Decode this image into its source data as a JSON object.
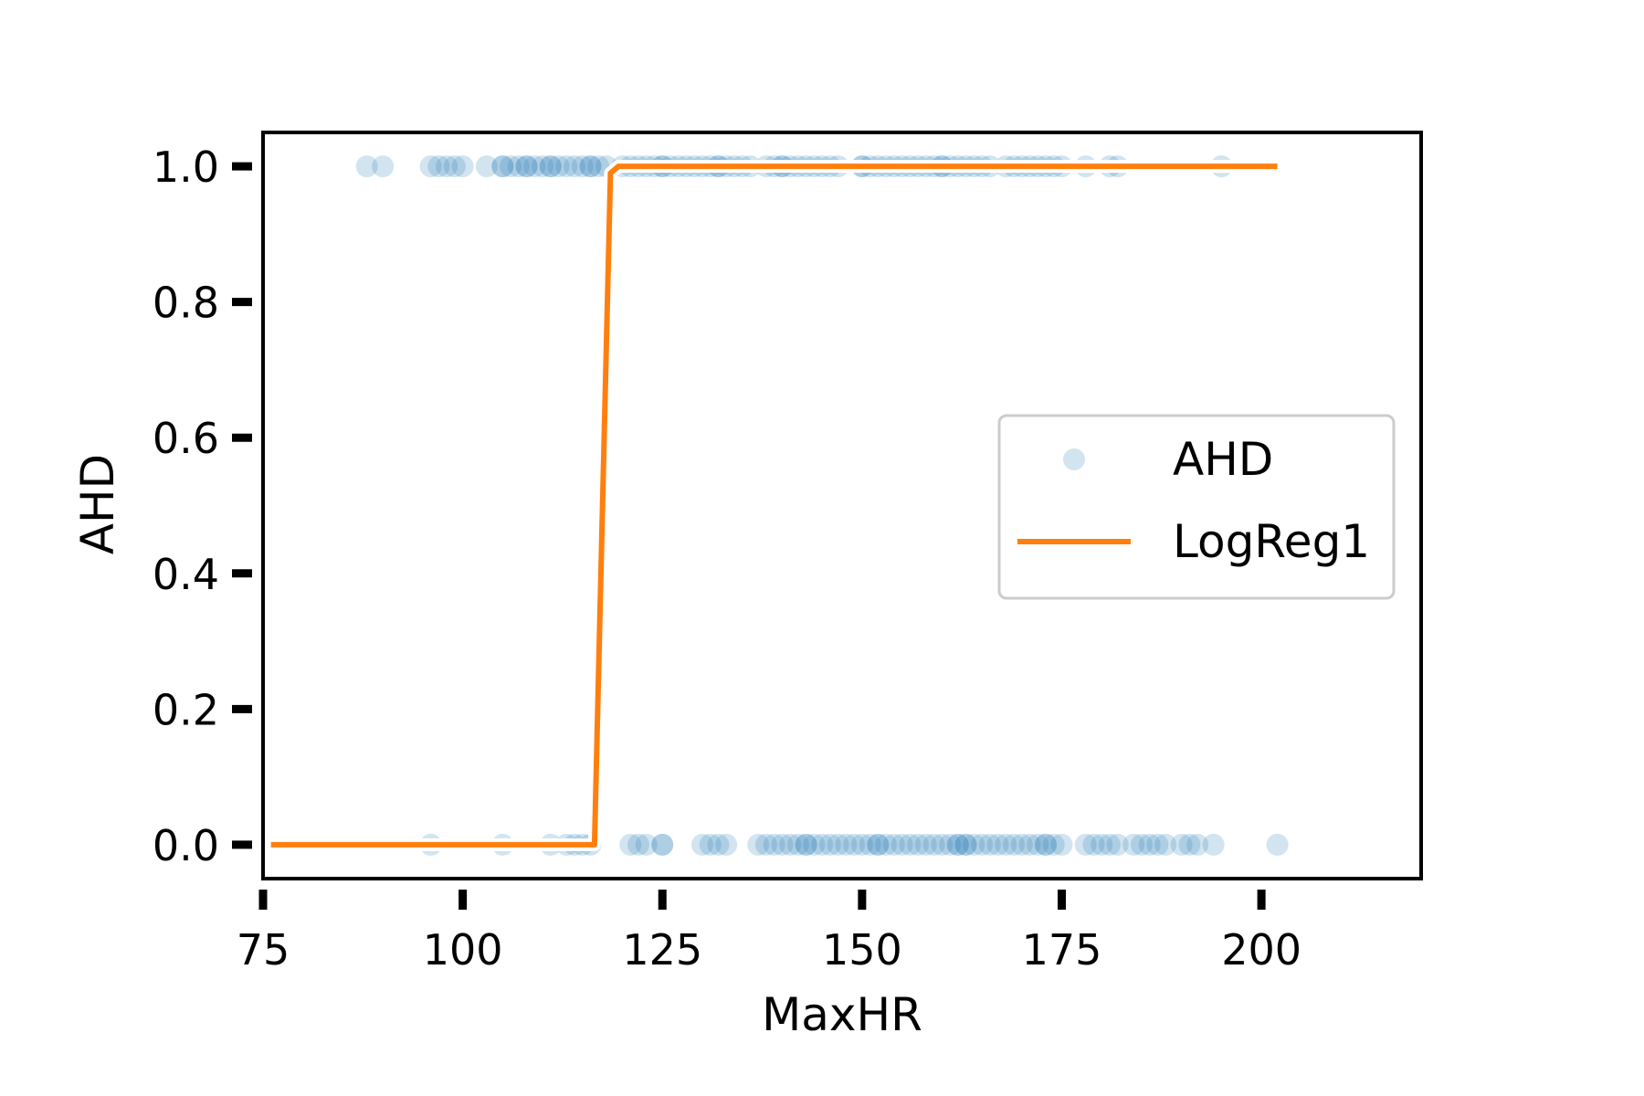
{
  "chart_data": {
    "type": "scatter",
    "xlabel": "MaxHR",
    "ylabel": "AHD",
    "xlim": [
      75,
      220
    ],
    "ylim": [
      -0.05,
      1.05
    ],
    "xticks": [
      "75",
      "100",
      "125",
      "150",
      "175",
      "200"
    ],
    "yticks": [
      "0.0",
      "0.2",
      "0.4",
      "0.6",
      "0.8",
      "1.0"
    ],
    "grid": false,
    "legend_position": "center-right",
    "series": [
      {
        "name": "AHD",
        "kind": "scatter",
        "color": "#1f77b4",
        "opacity": 0.2,
        "points_y1": [
          88,
          90,
          96,
          97,
          98,
          99,
          100,
          103,
          105,
          105,
          106,
          107,
          108,
          108,
          109,
          110,
          111,
          111,
          112,
          113,
          114,
          115,
          116,
          116,
          117,
          118,
          120,
          121,
          122,
          123,
          124,
          125,
          125,
          126,
          127,
          128,
          129,
          130,
          131,
          132,
          132,
          133,
          134,
          135,
          136,
          138,
          139,
          140,
          140,
          141,
          142,
          143,
          144,
          145,
          146,
          147,
          150,
          150,
          151,
          152,
          153,
          154,
          155,
          156,
          157,
          158,
          159,
          160,
          160,
          161,
          162,
          163,
          164,
          165,
          166,
          168,
          169,
          170,
          171,
          172,
          173,
          174,
          175,
          178,
          181,
          182,
          195
        ],
        "points_y0": [
          96,
          105,
          111,
          113,
          114,
          115,
          116,
          121,
          122,
          123,
          125,
          125,
          130,
          131,
          132,
          133,
          137,
          138,
          139,
          140,
          141,
          142,
          143,
          143,
          144,
          145,
          146,
          147,
          148,
          149,
          150,
          151,
          152,
          152,
          153,
          154,
          155,
          156,
          157,
          158,
          159,
          160,
          161,
          162,
          162,
          163,
          163,
          164,
          165,
          166,
          167,
          168,
          169,
          170,
          171,
          172,
          173,
          173,
          174,
          175,
          178,
          179,
          180,
          181,
          182,
          184,
          185,
          186,
          187,
          188,
          190,
          191,
          192,
          194,
          202
        ]
      },
      {
        "name": "LogReg1",
        "kind": "line",
        "color": "#ff7f0e",
        "x": [
          76,
          116.5,
          117.5,
          118.5,
          119.5,
          202
        ],
        "y": [
          0,
          0,
          0.5,
          0.99,
          1,
          1
        ]
      }
    ]
  }
}
